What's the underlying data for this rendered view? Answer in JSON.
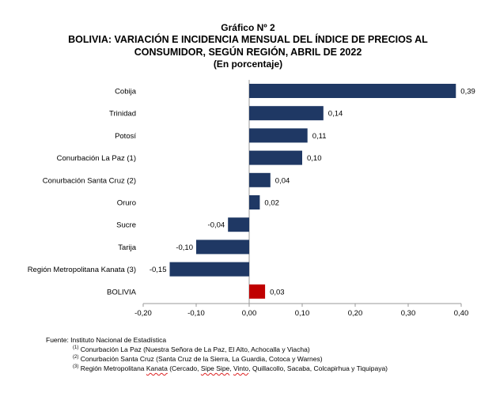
{
  "header": {
    "title_line1": "Gráfico Nº 2",
    "title_line2": "BOLIVIA: VARIACIÓN E INCIDENCIA MENSUAL DEL ÍNDICE DE PRECIOS AL",
    "title_line3": "CONSUMIDOR, SEGÚN REGIÓN, ABRIL DE 2022",
    "title_line4": "(En porcentaje)"
  },
  "chart_data": {
    "type": "bar",
    "orientation": "horizontal",
    "title": "BOLIVIA: VARIACIÓN E INCIDENCIA MENSUAL DEL ÍNDICE DE PRECIOS AL CONSUMIDOR, SEGÚN REGIÓN, ABRIL DE 2022",
    "subtitle": "(En porcentaje)",
    "categories": [
      "Cobija",
      "Trinidad",
      "Potosí",
      "Conurbación La Paz (1)",
      "Conurbación Santa Cruz (2)",
      "Oruro",
      "Sucre",
      "Tarija",
      "Región Metropolitana Kanata (3)",
      "BOLIVIA"
    ],
    "values": [
      0.39,
      0.14,
      0.11,
      0.1,
      0.04,
      0.02,
      -0.04,
      -0.1,
      -0.15,
      0.03
    ],
    "value_labels": [
      "0,39",
      "0,14",
      "0,11",
      "0,10",
      "0,04",
      "0,02",
      "-0,04",
      "-0,10",
      "-0,15",
      "0,03"
    ],
    "xlim": [
      -0.2,
      0.4
    ],
    "xticks": [
      -0.2,
      -0.1,
      0.0,
      0.1,
      0.2,
      0.3,
      0.4
    ],
    "xtick_labels": [
      "-0,20",
      "-0,10",
      "0,00",
      "0,10",
      "0,20",
      "0,30",
      "0,40"
    ],
    "grid": false,
    "xlabel": "",
    "ylabel": "",
    "colors": {
      "regions": "#1f3864",
      "total": "#c00000"
    },
    "highlight_category": "BOLIVIA"
  },
  "notes": {
    "source": "Fuente: Instituto Nacional de Estadística",
    "n1_mark": "(1)",
    "n1_text": "Conurbación La Paz (Nuestra Señora de La Paz, El Alto, Achocalla y Viacha)",
    "n2_mark": "(2)",
    "n2_text": "Conurbación Santa Cruz (Santa Cruz de la Sierra, La Guardia, Cotoca y Warnes)",
    "n3_mark": "(3)",
    "n3_pre": "Región Metropolitana ",
    "n3_w1": "Kanata",
    "n3_mid1": " (Cercado, ",
    "n3_w2": "Sipe Sipe",
    "n3_mid2": ", ",
    "n3_w3": "Vinto",
    "n3_post": ", Quillacollo, Sacaba, Colcapirhua y Tiquipaya)"
  }
}
